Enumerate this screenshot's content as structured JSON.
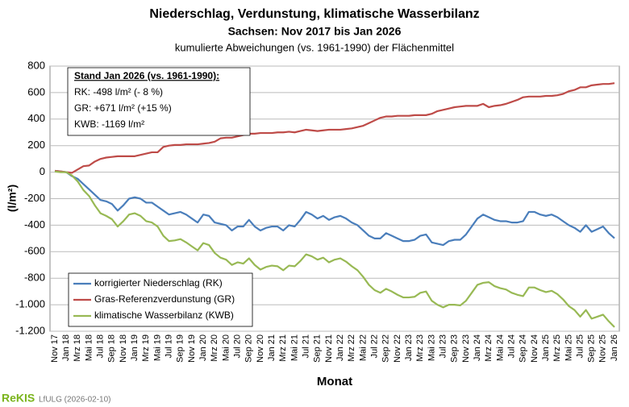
{
  "chart_data": {
    "type": "line",
    "title": "Niederschlag, Verdunstung, klimatische Wasserbilanz",
    "subtitle": "Sachsen: Nov 2017 bis Jan 2026",
    "description": "kumulierte Abweichungen (vs. 1961-1990) der Flächenmittel",
    "y_label": "(l/m²)",
    "x_label": "Monat",
    "annotations": [
      "Stand Jan 2026 (vs. 1961-1990):",
      "RK:     -498 l/m² (-  8 %)",
      "GR:    +671 l/m² (+15 %)",
      "KWB: -1169 l/m²"
    ],
    "categories": [
      "Nov 17",
      null,
      "Jan 18",
      null,
      "Mrz 18",
      null,
      "Mai 18",
      null,
      "Jul 18",
      null,
      "Sep 18",
      null,
      "Nov 18",
      null,
      "Jan 19",
      null,
      "Mrz 19",
      null,
      "Mai 19",
      null,
      "Jul 19",
      null,
      "Sep 19",
      null,
      "Nov 19",
      null,
      "Jan 20",
      null,
      "Mrz 20",
      null,
      "Mai 20",
      null,
      "Jul 20",
      null,
      "Sep 20",
      null,
      "Nov 20",
      null,
      "Jan 21",
      null,
      "Mrz 21",
      null,
      "Mai 21",
      null,
      "Jul 21",
      null,
      "Sep 21",
      null,
      "Nov 21",
      null,
      "Jan 22",
      null,
      "Mrz 22",
      null,
      "Mai 22",
      null,
      "Jul 22",
      null,
      "Sep 22",
      null,
      "Nov 22",
      null,
      "Jan 23",
      null,
      "Mrz 23",
      null,
      "Mai 23",
      null,
      "Jul 23",
      null,
      "Sep 23",
      null,
      "Nov 23",
      null,
      "Jan 24",
      null,
      "Mrz 24",
      null,
      "Mai 24",
      null,
      "Jul 24",
      null,
      "Sep 24",
      null,
      "Nov 24",
      null,
      "Jan 25",
      null,
      "Mrz 25",
      null,
      "Mai 25",
      null,
      "Jul 25",
      null,
      "Sep 25",
      null,
      "Nov 25",
      null,
      "Jan 26"
    ],
    "series": [
      {
        "name": "korrigierter Niederschlag (RK)",
        "color": "#4a7ebb",
        "values": [
          10,
          5,
          0,
          -30,
          -50,
          -90,
          -130,
          -170,
          -210,
          -220,
          -240,
          -290,
          -250,
          -200,
          -190,
          -200,
          -230,
          -230,
          -260,
          -290,
          -320,
          -310,
          -300,
          -320,
          -350,
          -380,
          -320,
          -330,
          -380,
          -390,
          -400,
          -440,
          -410,
          -410,
          -360,
          -410,
          -440,
          -420,
          -410,
          -410,
          -440,
          -400,
          -410,
          -360,
          -300,
          -320,
          -350,
          -330,
          -360,
          -340,
          -330,
          -350,
          -380,
          -400,
          -440,
          -480,
          -500,
          -500,
          -460,
          -480,
          -500,
          -520,
          -520,
          -510,
          -480,
          -470,
          -530,
          -540,
          -550,
          -520,
          -510,
          -510,
          -470,
          -410,
          -350,
          -320,
          -340,
          -360,
          -370,
          -370,
          -380,
          -380,
          -370,
          -300,
          -300,
          -320,
          -330,
          -320,
          -340,
          -370,
          -400,
          -420,
          -450,
          -400,
          -450,
          -430,
          -410,
          -460,
          -498
        ]
      },
      {
        "name": "Gras-Referenzverdunstung (GR)",
        "color": "#be4b48",
        "values": [
          10,
          5,
          0,
          -5,
          20,
          45,
          50,
          80,
          100,
          110,
          115,
          120,
          120,
          120,
          120,
          130,
          140,
          150,
          150,
          190,
          200,
          205,
          205,
          210,
          210,
          210,
          215,
          220,
          230,
          255,
          260,
          260,
          270,
          280,
          290,
          290,
          295,
          295,
          295,
          300,
          300,
          305,
          300,
          310,
          320,
          315,
          310,
          315,
          320,
          320,
          320,
          325,
          330,
          340,
          350,
          370,
          390,
          410,
          420,
          420,
          425,
          425,
          425,
          430,
          430,
          430,
          440,
          460,
          470,
          480,
          490,
          495,
          500,
          500,
          500,
          515,
          490,
          500,
          505,
          515,
          530,
          545,
          565,
          570,
          570,
          570,
          575,
          575,
          580,
          590,
          610,
          620,
          640,
          640,
          655,
          660,
          665,
          665,
          671
        ]
      },
      {
        "name": "klimatische Wasserbilanz (KWB)",
        "color": "#98b954",
        "values": [
          5,
          0,
          0,
          -25,
          -70,
          -135,
          -180,
          -250,
          -310,
          -330,
          -355,
          -410,
          -370,
          -320,
          -310,
          -330,
          -370,
          -380,
          -410,
          -480,
          -520,
          -515,
          -505,
          -530,
          -560,
          -590,
          -535,
          -550,
          -610,
          -645,
          -660,
          -700,
          -680,
          -690,
          -650,
          -700,
          -735,
          -715,
          -705,
          -710,
          -740,
          -705,
          -710,
          -670,
          -620,
          -635,
          -660,
          -645,
          -680,
          -660,
          -650,
          -675,
          -710,
          -740,
          -790,
          -850,
          -890,
          -910,
          -880,
          -900,
          -925,
          -945,
          -945,
          -940,
          -910,
          -900,
          -970,
          -1000,
          -1020,
          -1000,
          -1000,
          -1005,
          -970,
          -910,
          -850,
          -835,
          -830,
          -860,
          -875,
          -885,
          -910,
          -925,
          -935,
          -870,
          -870,
          -890,
          -905,
          -895,
          -920,
          -960,
          -1010,
          -1040,
          -1090,
          -1040,
          -1105,
          -1090,
          -1075,
          -1125,
          -1169
        ]
      }
    ],
    "ylim": [
      -1200,
      800
    ],
    "yticks": [
      {
        "value": -1200,
        "label": "-1.200"
      },
      {
        "value": -1000,
        "label": "-1.000"
      },
      -800,
      -600,
      -400,
      -200,
      0,
      200,
      400,
      600,
      800
    ],
    "grid": true,
    "legend": "lower left"
  },
  "footer": {
    "logo": "ReKIS",
    "source": "LfULG (2026-02-10)"
  }
}
